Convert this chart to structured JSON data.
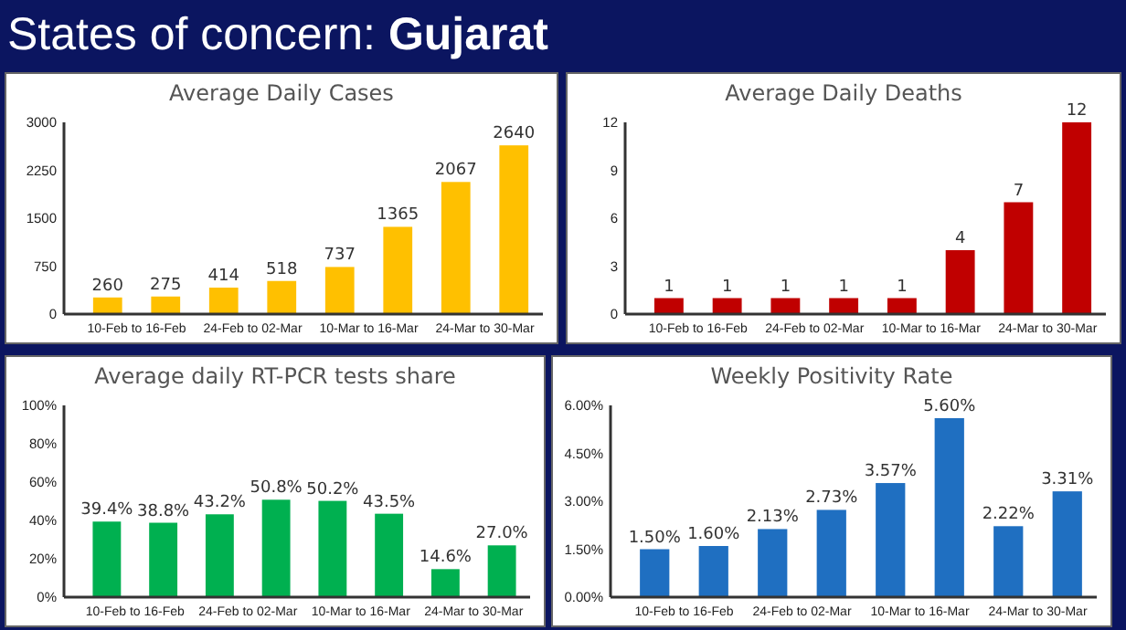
{
  "chart_data": [
    {
      "type": "bar",
      "title": "Average Daily Cases",
      "annotations": [
        "States of concern: Gujarat"
      ],
      "categories": [
        "10-Feb to 16-Feb",
        null,
        "24-Feb to 02-Mar",
        null,
        "10-Mar to 16-Mar",
        null,
        "24-Mar to 30-Mar",
        null
      ],
      "values": [
        260,
        275,
        414,
        518,
        737,
        1365,
        2067,
        2640
      ],
      "color": "#ffc000",
      "data_labels": true,
      "ylim": [
        0,
        3000
      ],
      "yticks": [
        0,
        750,
        1500,
        2250,
        3000
      ],
      "grid": false
    },
    {
      "type": "bar",
      "title": "Average Daily Deaths",
      "categories": [
        "10-Feb to 16-Feb",
        null,
        "24-Feb to 02-Mar",
        null,
        "10-Mar to 16-Mar",
        null,
        "24-Mar to 30-Mar",
        null
      ],
      "values": [
        1,
        1,
        1,
        1,
        1,
        4,
        7,
        12
      ],
      "color": "#c00000",
      "data_labels": true,
      "ylim": [
        0,
        12
      ],
      "yticks": [
        0,
        3,
        6,
        9,
        12
      ],
      "grid": false
    },
    {
      "type": "bar",
      "title": "Average daily RT-PCR tests share",
      "categories": [
        "10-Feb to 16-Feb",
        null,
        "24-Feb to 02-Mar",
        null,
        "10-Mar to 16-Mar",
        null,
        "24-Mar to 30-Mar",
        null
      ],
      "values": [
        39.4,
        38.8,
        43.2,
        50.8,
        50.2,
        43.5,
        14.6,
        27.0
      ],
      "color": "#00b050",
      "value_labels": [
        "39.4%",
        "38.8%",
        "43.2%",
        "50.8%",
        "50.2%",
        "43.5%",
        "14.6%",
        "27.0%"
      ],
      "ylim": [
        0,
        100
      ],
      "yticks": [
        {
          "value": 0,
          "label": "0%"
        },
        {
          "value": 20,
          "label": "20%"
        },
        {
          "value": 40,
          "label": "40%"
        },
        {
          "value": 60,
          "label": "60%"
        },
        {
          "value": 80,
          "label": "80%"
        },
        {
          "value": 100,
          "label": "100%"
        }
      ],
      "grid": false
    },
    {
      "type": "bar",
      "title": "Weekly Positivity Rate",
      "categories": [
        "10-Feb to 16-Feb",
        null,
        "24-Feb to 02-Mar",
        null,
        "10-Mar to 16-Mar",
        null,
        "24-Mar to 30-Mar",
        null
      ],
      "values": [
        1.5,
        1.6,
        2.13,
        2.73,
        3.57,
        5.6,
        2.22,
        3.31
      ],
      "color": "#1f6fc1",
      "value_labels": [
        "1.50%",
        "1.60%",
        "2.13%",
        "2.73%",
        "3.57%",
        "5.60%",
        "2.22%",
        "3.31%"
      ],
      "ylim": [
        0,
        6
      ],
      "yticks": [
        {
          "value": 0,
          "label": "0.00%"
        },
        {
          "value": 1.5,
          "label": "1.50%"
        },
        {
          "value": 3,
          "label": "3.00%"
        },
        {
          "value": 4.5,
          "label": "4.50%"
        },
        {
          "value": 6,
          "label": "6.00%"
        }
      ],
      "grid": false
    }
  ]
}
